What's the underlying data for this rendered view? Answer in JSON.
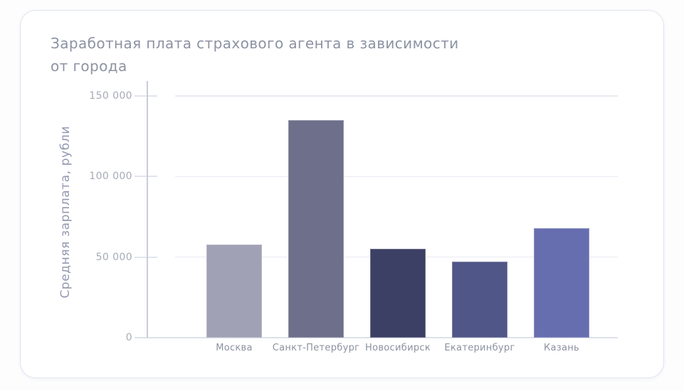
{
  "card": {
    "background": "#ffffff",
    "border_color": "#dfe3ed"
  },
  "chart_data": {
    "type": "bar",
    "title": "Заработная плата страхового агента в зависимости от города",
    "title_lines": [
      "Заработная плата страхового агента в зависимости",
      "от города"
    ],
    "ylabel": "Средняя зарплата, рубли",
    "xlabel": "",
    "categories": [
      "Москва",
      "Санкт-Петербург",
      "Новосибирск",
      "Екатеринбург",
      "Казань"
    ],
    "values": [
      58000,
      135000,
      55000,
      47000,
      68000
    ],
    "bar_colors": [
      "#a0a1b4",
      "#6e6f8a",
      "#3d4065",
      "#505687",
      "#676eaf"
    ],
    "ylim": [
      0,
      150000
    ],
    "yticks": [
      0,
      50000,
      100000,
      150000
    ],
    "ytick_labels": [
      "0",
      "50 000",
      "100 000",
      "150 000"
    ],
    "grid": "horizontal",
    "legend": "none",
    "colors": {
      "title_text": "#8b93a3",
      "axis_title_text": "#9497b0",
      "tick_label_text": "#a7abb8",
      "category_label_text": "#8b919f",
      "gridline": "#e9ebf2",
      "axis_line": "#c9cdd9"
    }
  }
}
